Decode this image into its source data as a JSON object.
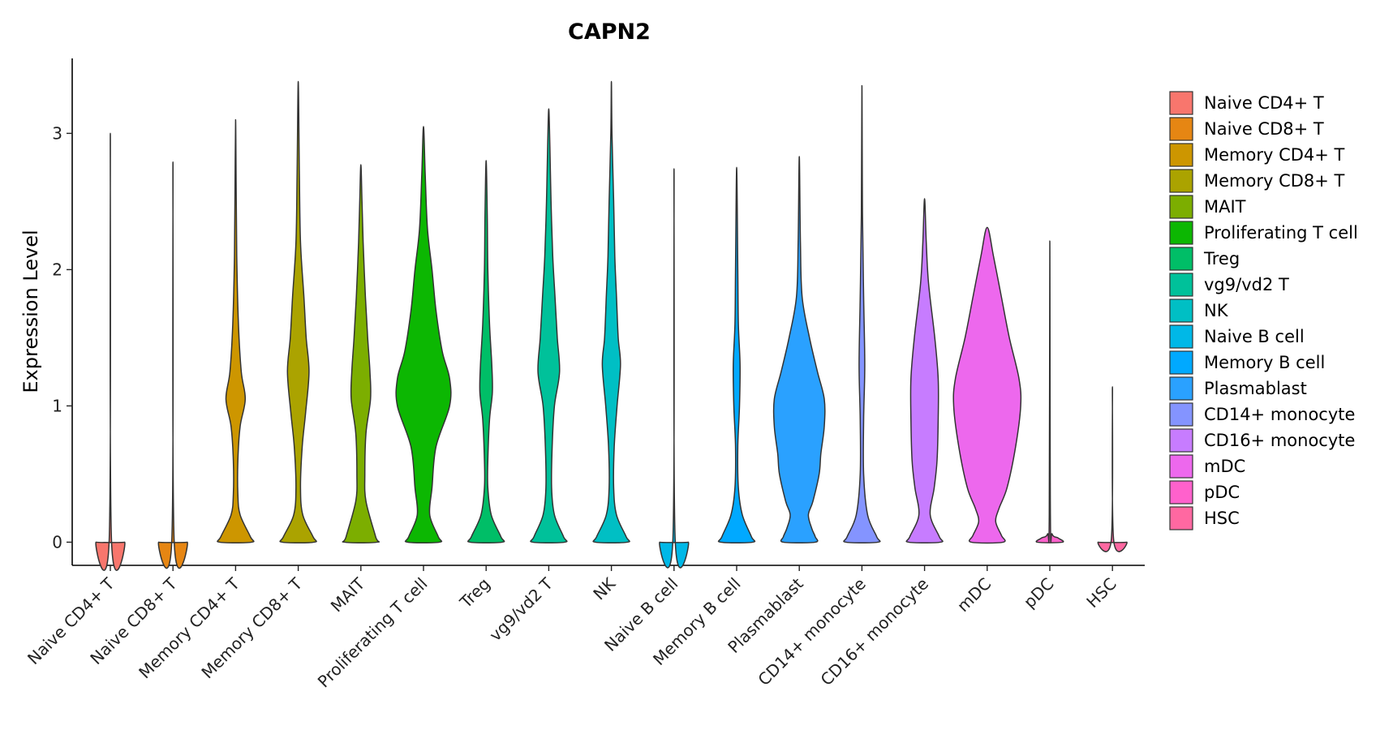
{
  "chart_data": {
    "type": "violin",
    "title": "CAPN2",
    "xlabel": "",
    "ylabel": "Expression Level",
    "ylim": [
      -0.17,
      3.55
    ],
    "yticks": [
      0,
      1,
      2,
      3
    ],
    "yticklabels": [
      "0",
      "1",
      "2",
      "3"
    ],
    "categories": [
      "Naive CD4+ T",
      "Naive CD8+ T",
      "Memory CD4+ T",
      "Memory CD8+ T",
      "MAIT",
      "Proliferating T cell",
      "Treg",
      "vg9/vd2 T",
      "NK",
      "Naive B cell",
      "Memory B cell",
      "Plasmablast",
      "CD14+ monocyte",
      "CD16+ monocyte",
      "mDC",
      "pDC",
      "HSC"
    ],
    "colors": [
      "#F8766D",
      "#E68613",
      "#CD9600",
      "#ABA300",
      "#7CAE00",
      "#0CB702",
      "#00BE67",
      "#00C19A",
      "#00BFC4",
      "#00B8E7",
      "#00A9FF",
      "#2AA1FF",
      "#8494FF",
      "#C77CFF",
      "#ED68ED",
      "#FF61CC",
      "#FF68A1"
    ],
    "max_values": [
      3.0,
      2.79,
      3.1,
      3.38,
      2.77,
      3.05,
      2.8,
      3.18,
      3.38,
      2.74,
      2.75,
      2.83,
      3.35,
      2.52,
      2.31,
      2.21,
      1.14
    ],
    "density_profiles": [
      [
        [
          0,
          0.25
        ],
        [
          0.02,
          0.02
        ],
        [
          3.0,
          0.0
        ]
      ],
      [
        [
          0,
          0.25
        ],
        [
          0.02,
          0.02
        ],
        [
          2.79,
          0.0
        ]
      ],
      [
        [
          0,
          0.28
        ],
        [
          0.04,
          0.26
        ],
        [
          0.2,
          0.08
        ],
        [
          0.35,
          0.04
        ],
        [
          0.6,
          0.04
        ],
        [
          0.85,
          0.08
        ],
        [
          1.05,
          0.17
        ],
        [
          1.25,
          0.1
        ],
        [
          1.6,
          0.05
        ],
        [
          2.1,
          0.02
        ],
        [
          2.6,
          0.01
        ],
        [
          3.1,
          0.0
        ]
      ],
      [
        [
          0,
          0.28
        ],
        [
          0.04,
          0.26
        ],
        [
          0.2,
          0.08
        ],
        [
          0.4,
          0.04
        ],
        [
          0.7,
          0.07
        ],
        [
          0.95,
          0.13
        ],
        [
          1.25,
          0.19
        ],
        [
          1.5,
          0.14
        ],
        [
          1.8,
          0.1
        ],
        [
          2.2,
          0.04
        ],
        [
          2.7,
          0.02
        ],
        [
          3.38,
          0.0
        ]
      ],
      [
        [
          0,
          0.28
        ],
        [
          0.04,
          0.26
        ],
        [
          0.3,
          0.09
        ],
        [
          0.5,
          0.07
        ],
        [
          0.8,
          0.09
        ],
        [
          1.05,
          0.17
        ],
        [
          1.25,
          0.16
        ],
        [
          1.5,
          0.12
        ],
        [
          1.8,
          0.08
        ],
        [
          2.2,
          0.04
        ],
        [
          2.5,
          0.02
        ],
        [
          2.77,
          0.0
        ]
      ],
      [
        [
          0,
          0.28
        ],
        [
          0.04,
          0.26
        ],
        [
          0.2,
          0.11
        ],
        [
          0.4,
          0.15
        ],
        [
          0.7,
          0.22
        ],
        [
          1.0,
          0.46
        ],
        [
          1.2,
          0.46
        ],
        [
          1.4,
          0.33
        ],
        [
          1.7,
          0.22
        ],
        [
          2.0,
          0.15
        ],
        [
          2.3,
          0.07
        ],
        [
          2.7,
          0.03
        ],
        [
          3.05,
          0.0
        ]
      ],
      [
        [
          0,
          0.28
        ],
        [
          0.04,
          0.26
        ],
        [
          0.2,
          0.09
        ],
        [
          0.4,
          0.03
        ],
        [
          0.6,
          0.03
        ],
        [
          0.9,
          0.06
        ],
        [
          1.1,
          0.11
        ],
        [
          1.3,
          0.1
        ],
        [
          1.6,
          0.06
        ],
        [
          2.0,
          0.03
        ],
        [
          2.4,
          0.02
        ],
        [
          2.8,
          0.0
        ]
      ],
      [
        [
          0,
          0.28
        ],
        [
          0.04,
          0.26
        ],
        [
          0.2,
          0.1
        ],
        [
          0.4,
          0.05
        ],
        [
          0.7,
          0.06
        ],
        [
          1.0,
          0.1
        ],
        [
          1.25,
          0.19
        ],
        [
          1.5,
          0.15
        ],
        [
          1.8,
          0.11
        ],
        [
          2.1,
          0.07
        ],
        [
          2.5,
          0.04
        ],
        [
          2.9,
          0.02
        ],
        [
          3.18,
          0.0
        ]
      ],
      [
        [
          0,
          0.28
        ],
        [
          0.04,
          0.26
        ],
        [
          0.2,
          0.09
        ],
        [
          0.4,
          0.04
        ],
        [
          0.7,
          0.05
        ],
        [
          1.0,
          0.1
        ],
        [
          1.3,
          0.16
        ],
        [
          1.5,
          0.12
        ],
        [
          1.8,
          0.09
        ],
        [
          2.1,
          0.06
        ],
        [
          2.5,
          0.04
        ],
        [
          3.0,
          0.01
        ],
        [
          3.38,
          0.0
        ]
      ],
      [
        [
          0,
          0.25
        ],
        [
          0.02,
          0.02
        ],
        [
          2.74,
          0.0
        ]
      ],
      [
        [
          0,
          0.28
        ],
        [
          0.04,
          0.26
        ],
        [
          0.2,
          0.1
        ],
        [
          0.4,
          0.03
        ],
        [
          0.7,
          0.02
        ],
        [
          1.0,
          0.05
        ],
        [
          1.3,
          0.06
        ],
        [
          1.6,
          0.03
        ],
        [
          2.0,
          0.02
        ],
        [
          2.75,
          0.0
        ]
      ],
      [
        [
          0,
          0.28
        ],
        [
          0.04,
          0.28
        ],
        [
          0.1,
          0.22
        ],
        [
          0.2,
          0.16
        ],
        [
          0.3,
          0.24
        ],
        [
          0.5,
          0.35
        ],
        [
          0.65,
          0.38
        ],
        [
          0.85,
          0.44
        ],
        [
          1.05,
          0.44
        ],
        [
          1.25,
          0.32
        ],
        [
          1.5,
          0.18
        ],
        [
          1.8,
          0.05
        ],
        [
          2.2,
          0.02
        ],
        [
          2.83,
          0.0
        ]
      ],
      [
        [
          0,
          0.28
        ],
        [
          0.04,
          0.26
        ],
        [
          0.2,
          0.1
        ],
        [
          0.5,
          0.03
        ],
        [
          0.9,
          0.03
        ],
        [
          1.3,
          0.05
        ],
        [
          1.8,
          0.03
        ],
        [
          2.4,
          0.01
        ],
        [
          3.35,
          0.0
        ]
      ],
      [
        [
          0,
          0.28
        ],
        [
          0.04,
          0.26
        ],
        [
          0.2,
          0.1
        ],
        [
          0.4,
          0.17
        ],
        [
          0.6,
          0.22
        ],
        [
          0.9,
          0.24
        ],
        [
          1.2,
          0.24
        ],
        [
          1.5,
          0.18
        ],
        [
          1.9,
          0.07
        ],
        [
          2.2,
          0.03
        ],
        [
          2.52,
          0.0
        ]
      ],
      [
        [
          0,
          0.28
        ],
        [
          0.05,
          0.25
        ],
        [
          0.15,
          0.15
        ],
        [
          0.25,
          0.21
        ],
        [
          0.4,
          0.35
        ],
        [
          0.7,
          0.5
        ],
        [
          1.0,
          0.59
        ],
        [
          1.2,
          0.56
        ],
        [
          1.5,
          0.39
        ],
        [
          1.8,
          0.25
        ],
        [
          2.1,
          0.11
        ],
        [
          2.31,
          0.0
        ]
      ],
      [
        [
          0,
          0.22
        ],
        [
          0.03,
          0.15
        ],
        [
          0.06,
          0.04
        ],
        [
          0.2,
          0.01
        ],
        [
          2.21,
          0.0
        ]
      ],
      [
        [
          0,
          0.25
        ],
        [
          0.02,
          0.02
        ],
        [
          1.14,
          0.0
        ]
      ]
    ]
  }
}
